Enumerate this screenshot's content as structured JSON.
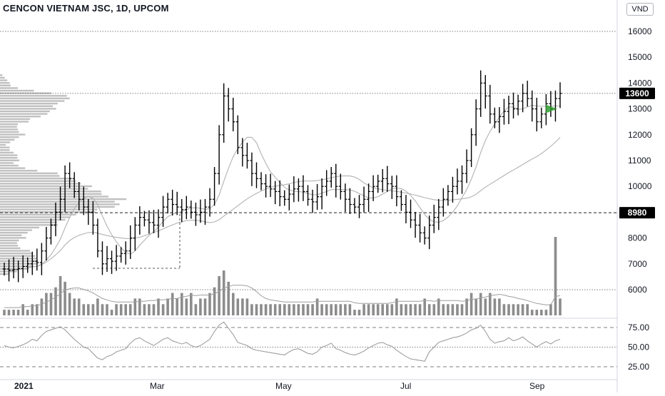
{
  "header": {
    "title": "CENCON VIETNAM JSC, 1D, UPCOM",
    "currency": "VND"
  },
  "price_axis": {
    "ticks": [
      "16000",
      "15000",
      "14000",
      "13000",
      "12000",
      "11000",
      "10000",
      "9000",
      "8000",
      "7000",
      "6000"
    ],
    "tick_values": [
      16000,
      15000,
      14000,
      13000,
      12000,
      11000,
      10000,
      9000,
      8000,
      7000,
      6000
    ],
    "last_price_label": "13600",
    "last_price": 13600,
    "line_label": "8980",
    "line_value": 8980
  },
  "rsi_axis": {
    "ticks": [
      "75.00",
      "50.00",
      "25.00"
    ],
    "tick_values": [
      75,
      50,
      25
    ]
  },
  "time_axis": {
    "labels": [
      "2021",
      "Mar",
      "May",
      "Jul",
      "Sep"
    ]
  },
  "colors": {
    "bar": "#000000",
    "ma_short": "#b2b2b2",
    "ma_long": "#b2b2b2",
    "volume": "#8c8c8c",
    "volume_profile": "#9e9e9e",
    "rsi": "#9e9e9e",
    "grid_dotted": "#555555",
    "arrow": "#2e9e2e",
    "label_bg": "#000000",
    "label_text": "#ffffff"
  },
  "chart_data": {
    "type": "ohlc",
    "title": "CENCON VIETNAM JSC, 1D, UPCOM",
    "currency": "VND",
    "ylim": [
      5200,
      16200
    ],
    "volume_profile": true,
    "moving_averages": 2,
    "overlay_lines": [
      {
        "value": 13600,
        "label": "13600"
      },
      {
        "value": 8980,
        "label": "8980"
      },
      {
        "value": 16000,
        "label": ""
      },
      {
        "value": 6000,
        "label": ""
      }
    ],
    "price_path": [
      6800,
      6750,
      6780,
      6820,
      6900,
      7000,
      7100,
      7050,
      7500,
      8000,
      8500,
      9000,
      9500,
      10500,
      10300,
      9800,
      9500,
      9200,
      9000,
      8500,
      7500,
      7000,
      7200,
      7100,
      7300,
      7400,
      7500,
      8000,
      8500,
      8800,
      8700,
      8600,
      8500,
      8800,
      9200,
      9500,
      9300,
      9200,
      9100,
      9200,
      9000,
      8900,
      9000,
      9200,
      9500,
      10500,
      12000,
      13500,
      13000,
      12500,
      11500,
      11200,
      11000,
      10500,
      10300,
      10100,
      10000,
      9900,
      9800,
      9600,
      9500,
      9700,
      9900,
      10000,
      9800,
      9500,
      9400,
      9600,
      10000,
      10200,
      10500,
      10000,
      9800,
      9500,
      9300,
      9200,
      9300,
      9500,
      9800,
      10000,
      10200,
      10300,
      10100,
      10000,
      9600,
      9300,
      9000,
      8700,
      8500,
      8200,
      8000,
      8500,
      8800,
      9200,
      9500,
      9800,
      10000,
      10200,
      10500,
      11000,
      12000,
      13000,
      14000,
      13500,
      12800,
      12500,
      12700,
      12900,
      13200,
      13000,
      13300,
      13600,
      13400,
      13000,
      12500,
      12800,
      13200,
      13000,
      13400,
      13600
    ],
    "volume_path": [
      1,
      1,
      1,
      1,
      2,
      1,
      2,
      2,
      3,
      4,
      4,
      5,
      7,
      6,
      4,
      3,
      3,
      2,
      2,
      2,
      3,
      2,
      2,
      1,
      2,
      2,
      2,
      2,
      3,
      3,
      2,
      2,
      2,
      3,
      2,
      3,
      4,
      3,
      4,
      3,
      4,
      2,
      3,
      3,
      4,
      5,
      7,
      8,
      6,
      4,
      3,
      3,
      3,
      2,
      2,
      2,
      2,
      2,
      2,
      2,
      2,
      2,
      2,
      2,
      2,
      2,
      2,
      3,
      2,
      2,
      2,
      2,
      2,
      2,
      2,
      1,
      1,
      2,
      2,
      2,
      2,
      2,
      2,
      2,
      3,
      2,
      2,
      2,
      2,
      2,
      3,
      2,
      2,
      3,
      2,
      2,
      2,
      2,
      2,
      3,
      4,
      3,
      4,
      3,
      4,
      3,
      3,
      2,
      2,
      2,
      2,
      2,
      2,
      1,
      1,
      1,
      1,
      2,
      14,
      3
    ],
    "rsi_path": [
      52,
      50,
      49,
      51,
      53,
      56,
      60,
      58,
      65,
      70,
      72,
      74,
      76,
      72,
      66,
      60,
      55,
      50,
      48,
      42,
      36,
      34,
      38,
      40,
      44,
      46,
      48,
      55,
      60,
      62,
      58,
      55,
      52,
      56,
      60,
      62,
      58,
      56,
      54,
      56,
      52,
      50,
      52,
      56,
      60,
      70,
      78,
      82,
      74,
      66,
      56,
      54,
      52,
      48,
      46,
      45,
      44,
      43,
      42,
      41,
      40,
      44,
      47,
      48,
      45,
      42,
      41,
      44,
      50,
      52,
      55,
      48,
      46,
      43,
      41,
      40,
      42,
      45,
      49,
      52,
      55,
      56,
      53,
      51,
      46,
      42,
      38,
      35,
      34,
      33,
      32,
      44,
      50,
      56,
      58,
      60,
      62,
      63,
      65,
      68,
      72,
      74,
      78,
      70,
      60,
      55,
      57,
      58,
      62,
      58,
      60,
      63,
      58,
      54,
      50,
      54,
      57,
      54,
      58,
      60
    ]
  }
}
